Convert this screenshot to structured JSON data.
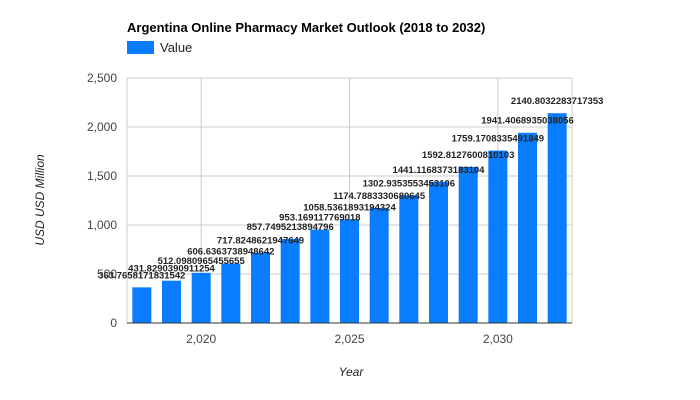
{
  "chart_data": {
    "type": "bar",
    "title": "Argentina Online Pharmacy Market Outlook (2018 to 2032)",
    "xlabel": "Year",
    "ylabel": "USD USD Million",
    "legend": {
      "position": "top-left",
      "entries": [
        "Value"
      ]
    },
    "series": [
      {
        "name": "Value",
        "color": "#0a7cff",
        "x": [
          2018,
          2019,
          2020,
          2021,
          2022,
          2023,
          2024,
          2025,
          2026,
          2027,
          2028,
          2029,
          2030,
          2031,
          2032
        ],
        "values": [
          363.7658171831542,
          431.8290390911254,
          512.0980965455655,
          606.6363738948642,
          717.8248621947649,
          857.7495213894796,
          953.169117769018,
          1058.5361893194324,
          1174.7883330680645,
          1302.9353553453107,
          1441.1168373183104,
          1592.8127600810103,
          1759.1708335491849,
          1941.4068935038056,
          2140.8032283717353
        ]
      }
    ],
    "data_labels": [
      "363.7658171831542",
      "431.8290390911254",
      "512.0980965455655",
      "606.6363738948642",
      "717.8248621947649",
      "857.7495213894796",
      "953.169117769018",
      "1058.5361893194324",
      "1174.7883330680645",
      "1302.9353553453106",
      "1441.1168373183104",
      "1592.8127600810103",
      "1759.1708335491849",
      "1941.4068935038056",
      "2140.8032283717353"
    ],
    "x_ticks": [
      {
        "value": 2020,
        "label": "2,020"
      },
      {
        "value": 2025,
        "label": "2,025"
      },
      {
        "value": 2030,
        "label": "2,030"
      }
    ],
    "y_ticks": [
      {
        "value": 0,
        "label": "0"
      },
      {
        "value": 500,
        "label": "500"
      },
      {
        "value": 1000,
        "label": "1,000"
      },
      {
        "value": 1500,
        "label": "1,500"
      },
      {
        "value": 2000,
        "label": "2,000"
      },
      {
        "value": 2500,
        "label": "2,500"
      }
    ],
    "xlim": [
      2017.5,
      2032.5
    ],
    "ylim": [
      0,
      2500
    ],
    "grid": true
  }
}
